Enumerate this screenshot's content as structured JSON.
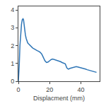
{
  "chart_data": {
    "type": "line",
    "xlabel": "Displacment (mm)",
    "x": [
      0.0,
      0.3,
      0.6,
      1.0,
      1.5,
      2.0,
      2.5,
      3.0,
      3.3,
      3.6,
      4.0,
      4.5,
      5.0,
      5.5,
      6.0,
      6.5,
      7.0,
      7.5,
      8.0,
      8.5,
      9.0,
      9.5,
      10.0,
      10.5,
      11.0,
      12.0,
      13.0,
      14.0,
      15.0,
      16.0,
      17.0,
      18.0,
      19.0,
      20.0,
      21.0,
      22.0,
      23.0,
      24.0,
      25.0,
      26.0,
      27.0,
      28.0,
      29.0,
      30.0,
      31.0,
      32.0,
      33.0,
      34.0,
      35.0,
      36.0,
      37.0,
      38.0,
      39.0,
      40.0,
      41.0,
      42.0,
      43.0,
      44.0,
      45.0,
      46.0,
      47.0,
      48.0,
      49.0,
      50.0
    ],
    "values": [
      0.0,
      0.4,
      1.0,
      2.0,
      2.8,
      3.2,
      3.45,
      3.5,
      3.45,
      3.2,
      2.9,
      2.6,
      2.4,
      2.25,
      2.15,
      2.1,
      2.05,
      2.0,
      1.95,
      1.92,
      1.88,
      1.85,
      1.82,
      1.8,
      1.78,
      1.72,
      1.68,
      1.62,
      1.52,
      1.35,
      1.15,
      1.05,
      1.08,
      1.15,
      1.22,
      1.25,
      1.22,
      1.2,
      1.18,
      1.15,
      1.1,
      1.05,
      1.02,
      0.98,
      0.75,
      0.68,
      0.72,
      0.75,
      0.78,
      0.8,
      0.82,
      0.8,
      0.78,
      0.75,
      0.73,
      0.7,
      0.68,
      0.65,
      0.62,
      0.6,
      0.58,
      0.55,
      0.53,
      0.5
    ],
    "color": "#2E75B6",
    "xlim": [
      0,
      52
    ],
    "ylim": [
      0,
      4.2
    ],
    "xticks": [
      0,
      20,
      40
    ],
    "yticks": [
      0,
      1,
      2,
      3,
      4
    ],
    "grid": false
  }
}
